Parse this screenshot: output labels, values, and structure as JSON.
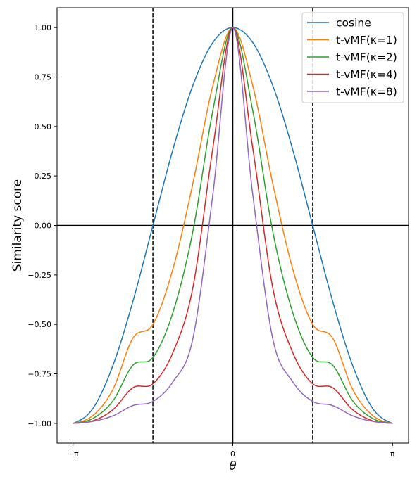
{
  "chart_data": {
    "type": "line",
    "xlabel": "θ",
    "ylabel": "Similarity score",
    "xlim": [
      -3.4558,
      3.4558
    ],
    "ylim": [
      -1.1,
      1.1
    ],
    "x_ticks": [
      {
        "value": -3.14159,
        "label": "−π"
      },
      {
        "value": 0,
        "label": "0"
      },
      {
        "value": 3.14159,
        "label": "π"
      }
    ],
    "y_ticks": [
      {
        "value": 1.0,
        "label": "1.00"
      },
      {
        "value": 0.75,
        "label": "0.75"
      },
      {
        "value": 0.5,
        "label": "0.50"
      },
      {
        "value": 0.25,
        "label": "0.25"
      },
      {
        "value": 0.0,
        "label": "0.00"
      },
      {
        "value": -0.25,
        "label": "−0.25"
      },
      {
        "value": -0.5,
        "label": "−0.50"
      },
      {
        "value": -0.75,
        "label": "−0.75"
      },
      {
        "value": -1.0,
        "label": "−1.00"
      }
    ],
    "reference_lines": {
      "horizontal_solid": [
        0
      ],
      "vertical_solid": [
        0
      ],
      "vertical_dashed": [
        -1.5708,
        1.5708
      ]
    },
    "grid": false,
    "legend_position": "top-right",
    "x": [
      -3.14159,
      -2.74889,
      -2.35619,
      -1.9635,
      -1.5708,
      -1.1781,
      -0.7854,
      -0.3927,
      0,
      0.3927,
      0.7854,
      1.1781,
      1.5708,
      1.9635,
      2.35619,
      2.74889,
      3.14159
    ],
    "series": [
      {
        "name": "cosine",
        "color": "#1f77b4",
        "values": [
          -1.0,
          -0.924,
          -0.707,
          -0.383,
          0.0,
          0.383,
          0.707,
          0.924,
          1.0,
          0.924,
          0.707,
          0.383,
          0.0,
          -0.383,
          -0.707,
          -0.924,
          -1.0
        ]
      },
      {
        "name": "t-vMF(κ=1)",
        "color": "#ff7f0e",
        "values": [
          -1.0,
          -0.96,
          -0.828,
          -0.569,
          -0.5,
          -0.22,
          0.212,
          0.706,
          1.0,
          0.706,
          0.212,
          -0.22,
          -0.5,
          -0.569,
          -0.828,
          -0.96,
          -1.0
        ]
      },
      {
        "name": "t-vMF(κ=2)",
        "color": "#2ca02c",
        "values": [
          -1.0,
          -0.975,
          -0.886,
          -0.706,
          -0.667,
          -0.44,
          -0.03,
          0.58,
          1.0,
          0.58,
          -0.03,
          -0.44,
          -0.667,
          -0.706,
          -0.886,
          -0.975,
          -1.0
        ]
      },
      {
        "name": "t-vMF(κ=4)",
        "color": "#d62728",
        "values": [
          -1.0,
          -0.987,
          -0.931,
          -0.82,
          -0.8,
          -0.642,
          -0.315,
          0.39,
          1.0,
          0.39,
          -0.315,
          -0.642,
          -0.8,
          -0.82,
          -0.931,
          -0.987,
          -1.0
        ]
      },
      {
        "name": "t-vMF(κ=8)",
        "color": "#9467bd",
        "values": [
          -1.0,
          -0.99,
          -0.962,
          -0.91,
          -0.889,
          -0.79,
          -0.572,
          0.155,
          1.0,
          0.155,
          -0.572,
          -0.79,
          -0.889,
          -0.91,
          -0.962,
          -0.99,
          -1.0
        ]
      }
    ]
  }
}
